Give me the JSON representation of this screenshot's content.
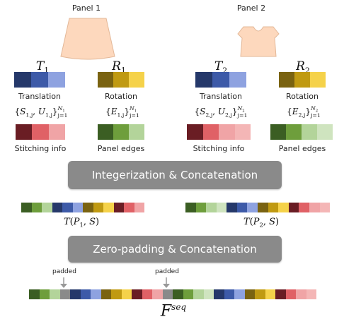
{
  "panels": [
    {
      "title": "Panel 1",
      "translation": {
        "symbol": "T",
        "subscript": "1",
        "label": "Translation",
        "colors": [
          "#25386a",
          "#3d5aa8",
          "#8ea2e0"
        ]
      },
      "rotation": {
        "symbol": "R",
        "subscript": "1",
        "label": "Rotation",
        "colors": [
          "#7a6311",
          "#c09a12",
          "#f5d24a"
        ]
      },
      "stitching": {
        "set_S": "S",
        "set_U": "U",
        "index": "1,j",
        "sup": "N",
        "sup_sub": "1",
        "range": "j=1",
        "label": "Stitching info",
        "colors": [
          "#6a1d24",
          "#e06166",
          "#f0a4a6"
        ]
      },
      "edges": {
        "set_E": "E",
        "index": "1,j",
        "sup": "N",
        "sup_sub": "1",
        "range": "j=1",
        "label": "Panel edges",
        "colors": [
          "#3b5e23",
          "#6e9e3c",
          "#b3d49a"
        ]
      },
      "token": {
        "T": "T",
        "P": "P",
        "psub": "1",
        "S": "S"
      }
    },
    {
      "title": "Panel 2",
      "translation": {
        "symbol": "T",
        "subscript": "2",
        "label": "Translation",
        "colors": [
          "#25386a",
          "#3d5aa8",
          "#8ea2e0"
        ]
      },
      "rotation": {
        "symbol": "R",
        "subscript": "2",
        "label": "Rotation",
        "colors": [
          "#7a6311",
          "#c09a12",
          "#f5d24a"
        ]
      },
      "stitching": {
        "set_S": "S",
        "set_U": "U",
        "index": "2,j",
        "sup": "N",
        "sup_sub": "2",
        "range": "j=1",
        "label": "Stitching info",
        "colors": [
          "#6a1d24",
          "#e06166",
          "#f0a4a6",
          "#f4b6b6"
        ]
      },
      "edges": {
        "set_E": "E",
        "index": "2,j",
        "sup": "N",
        "sup_sub": "2",
        "range": "j=1",
        "label": "Panel edges",
        "colors": [
          "#3b5e23",
          "#6e9e3c",
          "#b3d49a",
          "#cfe4bf"
        ]
      },
      "token": {
        "T": "T",
        "P": "P",
        "psub": "2",
        "S": "S"
      }
    }
  ],
  "banners": {
    "integerize": "Integerization & Concatenation",
    "zeropad": "Zero-padding & Concatenation"
  },
  "seq1_colors": [
    "#3b5e23",
    "#6e9e3c",
    "#b3d49a",
    "#25386a",
    "#3d5aa8",
    "#8ea2e0",
    "#7a6311",
    "#c09a12",
    "#f5d24a",
    "#6a1d24",
    "#e06166",
    "#f0a4a6"
  ],
  "seq2_colors": [
    "#3b5e23",
    "#6e9e3c",
    "#b3d49a",
    "#cfe4bf",
    "#25386a",
    "#3d5aa8",
    "#8ea2e0",
    "#7a6311",
    "#c09a12",
    "#f5d24a",
    "#6a1d24",
    "#e06166",
    "#f0a4a6",
    "#f4b6b6"
  ],
  "final_colors": [
    "#3b5e23",
    "#6e9e3c",
    "#b3d49a",
    "#8a8a8a",
    "#25386a",
    "#3d5aa8",
    "#8ea2e0",
    "#7a6311",
    "#c09a12",
    "#f5d24a",
    "#6a1d24",
    "#e06166",
    "#f0a4a6",
    "#8a8a8a",
    "#3b5e23",
    "#6e9e3c",
    "#b3d49a",
    "#cfe4bf",
    "#25386a",
    "#3d5aa8",
    "#8ea2e0",
    "#7a6311",
    "#c09a12",
    "#f5d24a",
    "#6a1d24",
    "#e06166",
    "#f0a4a6",
    "#f4b6b6"
  ],
  "padded_label": "padded",
  "final_symbol": "F",
  "final_sup": "seq"
}
